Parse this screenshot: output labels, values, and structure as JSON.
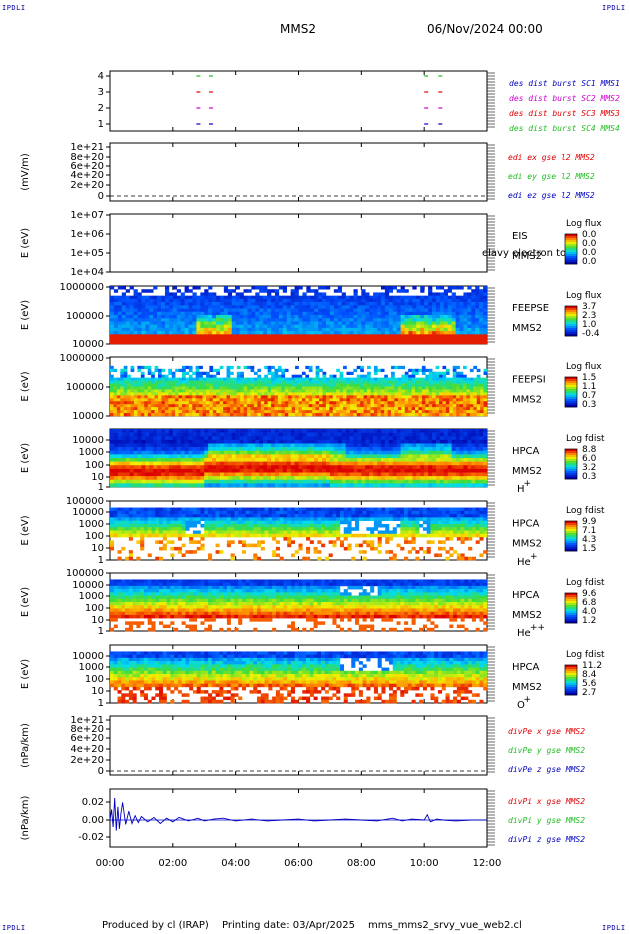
{
  "corner": {
    "tl": "IPDLI",
    "tr": "IPDLI",
    "bl": "IPDLI",
    "br": "IPDLI"
  },
  "header": {
    "sc": "MMS2",
    "date": "06/Nov/2024 00:00"
  },
  "footer": {
    "producer": "Produced by cl (IRAP)",
    "printing": "Printing date: 03/Apr/2025",
    "script": "mms_mms2_srvy_vue_web2.cl"
  },
  "colors": {
    "red": "#e00000",
    "green": "#22bb22",
    "blue": "#0000c0",
    "magenta": "#cc00cc",
    "axis": "#000000"
  },
  "chart_data": [
    {
      "type": "scatter",
      "panel": "burst",
      "ylim": [
        0.5,
        4.5
      ],
      "yticks": [
        "1",
        "2",
        "3",
        "4"
      ],
      "legend": [
        {
          "name": "des dist burst SC1 MMS1",
          "color": "#0000c0"
        },
        {
          "name": "des dist burst SC2 MMS2",
          "color": "#cc00cc"
        },
        {
          "name": "des dist burst SC3 MMS3",
          "color": "#e00000"
        },
        {
          "name": "des dist burst SC4 MMS4",
          "color": "#22bb22"
        }
      ],
      "series": [
        {
          "name": "SC4",
          "color": "#22bb22",
          "y": 4,
          "x": [
            2.75,
            3.15,
            10.0,
            10.45
          ]
        },
        {
          "name": "SC3",
          "color": "#e00000",
          "y": 3,
          "x": [
            2.75,
            3.15,
            10.0,
            10.45
          ]
        },
        {
          "name": "SC2",
          "color": "#cc00cc",
          "y": 2,
          "x": [
            2.75,
            3.15,
            10.0,
            10.45
          ]
        },
        {
          "name": "SC1",
          "color": "#0000c0",
          "y": 1,
          "x": [
            2.75,
            3.15,
            10.0,
            10.45
          ]
        }
      ]
    },
    {
      "type": "line",
      "panel": "edi",
      "ylabel": "(mV/m)",
      "ylim": [
        -2e+20,
        1.2e+21
      ],
      "yticks": [
        "0",
        "2e+20",
        "4e+20",
        "6e+20",
        "8e+20",
        "1e+21"
      ],
      "legend": [
        {
          "name": "edi ex gse l2 MMS2",
          "color": "#e00000"
        },
        {
          "name": "edi ey gse l2 MMS2",
          "color": "#22bb22"
        },
        {
          "name": "edi ez gse l2 MMS2",
          "color": "#0000c0"
        }
      ]
    },
    {
      "type": "heatmap",
      "panel": "eis",
      "ylabel": "E (eV)",
      "yticks": [
        "1e+04",
        "1e+05",
        "1e+06",
        "1e+07"
      ],
      "inst": [
        "EIS",
        "MMS2"
      ],
      "overlay": "elavy electron to",
      "cbar": {
        "title": "Log flux",
        "ticks": [
          "0.0",
          "0.0",
          "0.0",
          "0.0"
        ]
      }
    },
    {
      "type": "heatmap",
      "panel": "feepse",
      "ylabel": "E (eV)",
      "yticks": [
        "10000",
        "100000",
        "1000000"
      ],
      "inst": [
        "FEEPSE",
        "MMS2"
      ],
      "cbar": {
        "title": "Log flux",
        "ticks": [
          "3.7",
          "2.3",
          "1.0",
          "-0.4"
        ]
      }
    },
    {
      "type": "heatmap",
      "panel": "feepsi",
      "ylabel": "E (eV)",
      "yticks": [
        "10000",
        "100000",
        "1000000"
      ],
      "inst": [
        "FEEPSI",
        "MMS2"
      ],
      "cbar": {
        "title": "Log flux",
        "ticks": [
          "1.5",
          "1.1",
          "0.7",
          "0.3"
        ]
      }
    },
    {
      "type": "heatmap",
      "panel": "hpca_h",
      "ylabel": "E (eV)",
      "yticks": [
        "1",
        "10",
        "100",
        "1000",
        "10000"
      ],
      "inst": [
        "HPCA",
        "MMS2",
        "H",
        "+"
      ],
      "cbar": {
        "title": "Log fdist",
        "ticks": [
          "8.8",
          "6.0",
          "3.2",
          "0.3"
        ]
      }
    },
    {
      "type": "heatmap",
      "panel": "hpca_he",
      "ylabel": "E (eV)",
      "yticks": [
        "1",
        "10",
        "100",
        "1000",
        "10000",
        "100000"
      ],
      "inst": [
        "HPCA",
        "MMS2",
        "He",
        "+"
      ],
      "cbar": {
        "title": "Log fdist",
        "ticks": [
          "9.9",
          "7.1",
          "4.3",
          "1.5"
        ]
      }
    },
    {
      "type": "heatmap",
      "panel": "hpca_hepp",
      "ylabel": "E (eV)",
      "yticks": [
        "1",
        "10",
        "100",
        "1000",
        "10000",
        "100000"
      ],
      "inst": [
        "HPCA",
        "MMS2",
        "He",
        "++"
      ],
      "cbar": {
        "title": "Log fdist",
        "ticks": [
          "9.6",
          "6.8",
          "4.0",
          "1.2"
        ]
      }
    },
    {
      "type": "heatmap",
      "panel": "hpca_o",
      "ylabel": "E (eV)",
      "yticks": [
        "1",
        "10",
        "100",
        "1000",
        "10000"
      ],
      "inst": [
        "HPCA",
        "MMS2",
        "O",
        "+"
      ],
      "cbar": {
        "title": "Log fdist",
        "ticks": [
          "11.2",
          "8.4",
          "5.6",
          "2.7"
        ]
      }
    },
    {
      "type": "line",
      "panel": "divpe",
      "ylabel": "(nPa/km)",
      "ylim": [
        -2e+20,
        1.2e+21
      ],
      "yticks": [
        "0",
        "2e+20",
        "4e+20",
        "6e+20",
        "8e+20",
        "1e+21"
      ],
      "legend": [
        {
          "name": "divPe x gse MMS2",
          "color": "#e00000"
        },
        {
          "name": "divPe y gse MMS2",
          "color": "#22bb22"
        },
        {
          "name": "divPe z gse MMS2",
          "color": "#0000c0"
        }
      ]
    },
    {
      "type": "line",
      "panel": "divpi",
      "ylabel": "(nPa/km)",
      "ylim": [
        -0.03,
        0.03
      ],
      "yticks": [
        "-0.02",
        "0.00",
        "0.02"
      ],
      "legend": [
        {
          "name": "divPi x gse MMS2",
          "color": "#e00000"
        },
        {
          "name": "divPi y gse MMS2",
          "color": "#22bb22"
        },
        {
          "name": "divPi z gse MMS2",
          "color": "#0000c0"
        }
      ],
      "series": [
        {
          "name": "divPi z gse MMS2",
          "color": "#0000c0",
          "x": [
            0,
            0.05,
            0.1,
            0.15,
            0.2,
            0.25,
            0.3,
            0.35,
            0.4,
            0.5,
            0.6,
            0.7,
            0.8,
            0.9,
            1.0,
            1.2,
            1.4,
            1.6,
            1.8,
            2.0,
            2.2,
            2.5,
            2.8,
            3.0,
            3.3,
            3.6,
            4.0,
            4.5,
            5.0,
            5.5,
            6.0,
            6.5,
            7.0,
            7.5,
            8.0,
            8.5,
            9.0,
            9.3,
            9.6,
            10.0,
            10.1,
            10.2,
            10.4,
            10.6,
            11.0,
            11.5,
            12.0
          ],
          "y": [
            0.0,
            0.012,
            -0.008,
            0.025,
            -0.012,
            0.015,
            -0.01,
            0.008,
            0.02,
            -0.005,
            0.01,
            -0.004,
            0.005,
            -0.003,
            0.004,
            -0.002,
            0.003,
            -0.004,
            0.002,
            -0.002,
            0.003,
            -0.001,
            0.002,
            -0.001,
            0.001,
            0.002,
            -0.001,
            0.001,
            -0.001,
            0.0,
            0.001,
            -0.001,
            0.0,
            0.001,
            0.0,
            -0.001,
            0.002,
            -0.001,
            0.001,
            0.0,
            0.006,
            -0.002,
            0.001,
            0.0,
            -0.001,
            0.0,
            0.0
          ]
        }
      ]
    }
  ],
  "time_axis": {
    "range": [
      0,
      12
    ],
    "labels": [
      "00:00",
      "02:00",
      "04:00",
      "06:00",
      "08:00",
      "10:00",
      "12:00"
    ]
  }
}
